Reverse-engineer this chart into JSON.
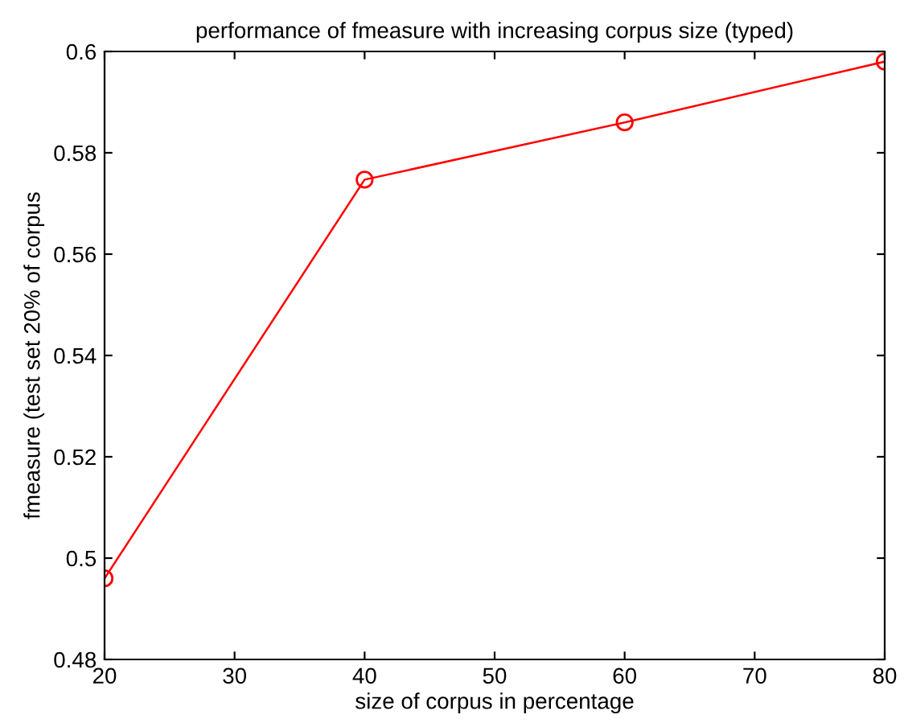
{
  "chart_data": {
    "type": "line",
    "title": "performance of fmeasure with increasing corpus size (typed)",
    "xlabel": "size of corpus in percentage",
    "ylabel": "fmeasure (test set 20% of corpus",
    "x": [
      20,
      40,
      60,
      80
    ],
    "series": [
      {
        "color": "#ff0000",
        "values": [
          0.496,
          0.5747,
          0.586,
          0.598
        ]
      }
    ],
    "xlim": [
      20,
      80
    ],
    "xticks": [
      20,
      30,
      40,
      50,
      60,
      70,
      80
    ],
    "ylim": [
      0.48,
      0.6
    ],
    "yticks": [
      0.48,
      0.5,
      0.52,
      0.54,
      0.56,
      0.58,
      0.6
    ],
    "marker": "circle",
    "line_style": "solid",
    "grid": false
  }
}
